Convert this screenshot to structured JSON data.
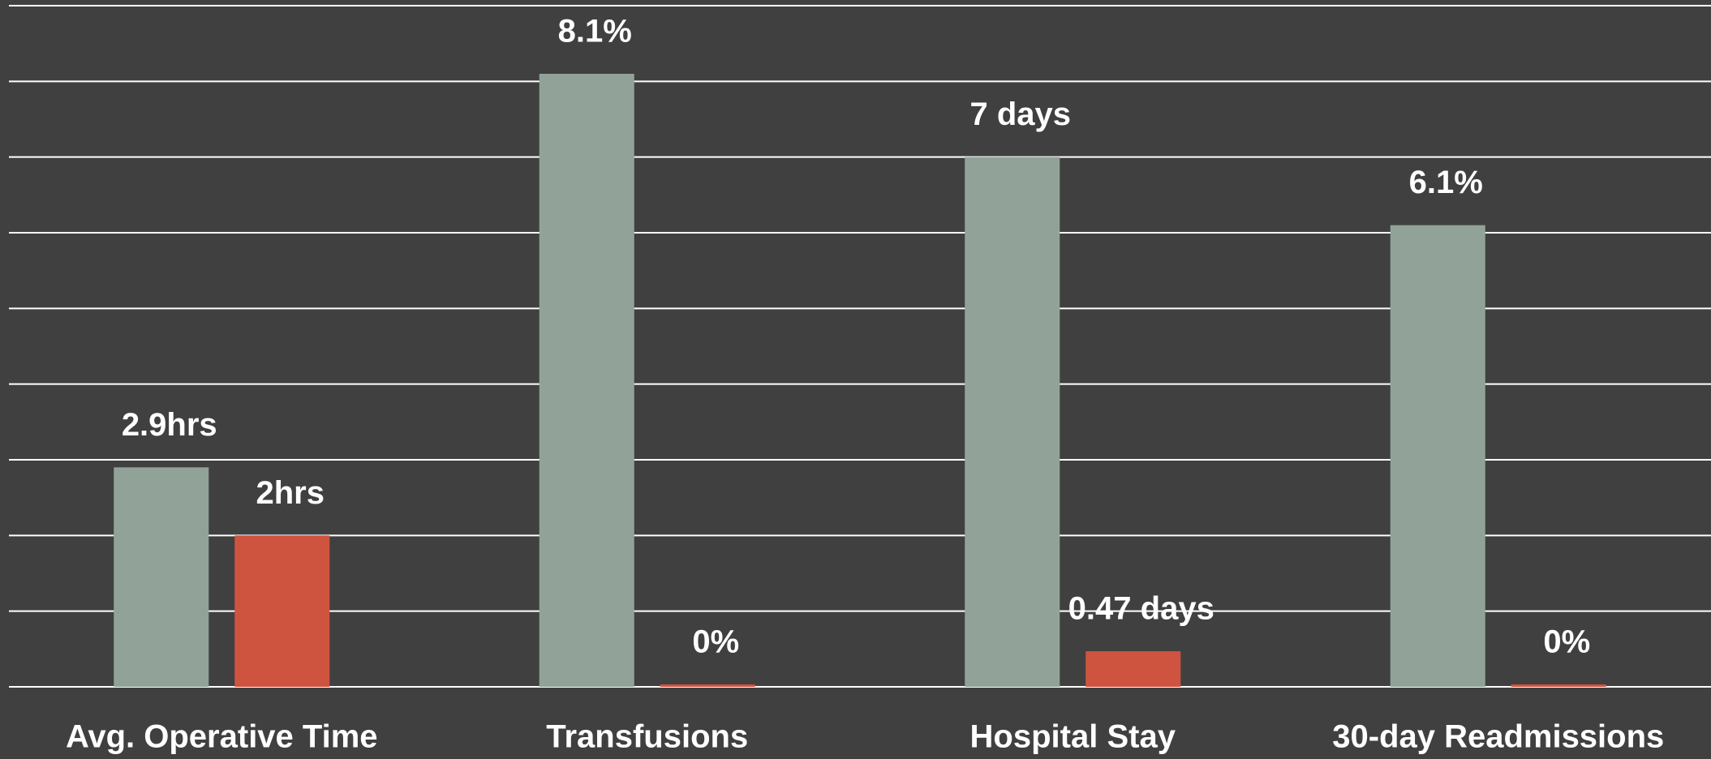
{
  "chart_data": {
    "type": "bar",
    "categories": [
      "Avg. Operative Time",
      "Transfusions",
      "Hospital Stay",
      "30-day Readmissions"
    ],
    "series": [
      {
        "color": "#91a398",
        "values": [
          2.9,
          8.1,
          7,
          6.1
        ],
        "value_labels": [
          "2.9hrs",
          "8.1%",
          "7 days",
          "6.1%"
        ]
      },
      {
        "color": "#cf5440",
        "values": [
          2,
          0,
          0.47,
          0
        ],
        "value_labels": [
          "2hrs",
          "0%",
          "0.47 days",
          "0%"
        ]
      }
    ],
    "ylim": [
      0,
      9
    ],
    "yticks": [
      0,
      1,
      2,
      3,
      4,
      5,
      6,
      7,
      8,
      9
    ],
    "grid": true
  }
}
